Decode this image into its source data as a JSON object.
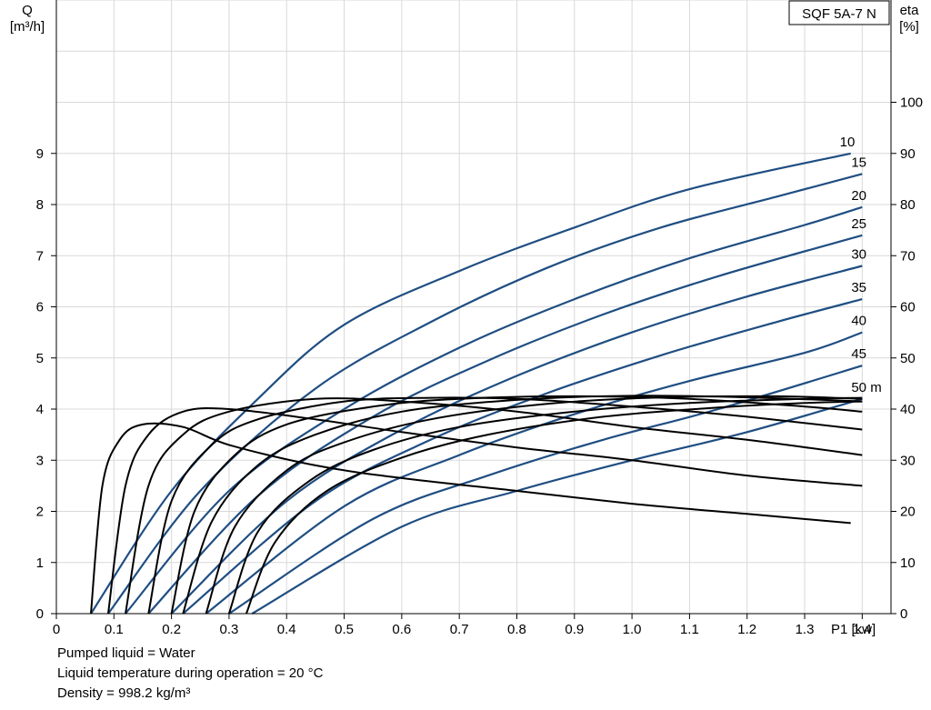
{
  "chart_data": {
    "type": "line",
    "product": "SQF 5A-7 N",
    "x_axis": {
      "label": "P1 [kw]",
      "range": [
        0,
        1.45
      ],
      "ticks": [
        0,
        0.1,
        0.2,
        0.3,
        0.4,
        0.5,
        0.6,
        0.7,
        0.8,
        0.9,
        1.0,
        1.1,
        1.2,
        1.3,
        1.4
      ],
      "tick_labels": [
        "0",
        "0.1",
        "0.2",
        "0.3",
        "0.4",
        "0.5",
        "0.6",
        "0.7",
        "0.8",
        "0.9",
        "1.0",
        "1.1",
        "1.2",
        "1.3",
        "1.4"
      ]
    },
    "y_left": {
      "label_line1": "Q",
      "label_line2": "[m³/h]",
      "range": [
        0,
        12
      ],
      "ticks": [
        0,
        1,
        2,
        3,
        4,
        5,
        6,
        7,
        8,
        9
      ]
    },
    "y_right": {
      "label_line1": "eta",
      "label_line2": "[%]",
      "range": [
        0,
        120
      ],
      "ticks": [
        0,
        10,
        20,
        30,
        40,
        50,
        60,
        70,
        80,
        90,
        100
      ]
    },
    "grid": true,
    "flow_series": [
      {
        "name": "10",
        "label": "10",
        "points": [
          [
            0.06,
            0
          ],
          [
            0.2,
            2.4
          ],
          [
            0.35,
            4.2
          ],
          [
            0.5,
            5.65
          ],
          [
            0.7,
            6.7
          ],
          [
            0.9,
            7.55
          ],
          [
            1.1,
            8.3
          ],
          [
            1.38,
            9.0
          ]
        ]
      },
      {
        "name": "15",
        "label": "15",
        "points": [
          [
            0.09,
            0
          ],
          [
            0.25,
            2.4
          ],
          [
            0.45,
            4.4
          ],
          [
            0.65,
            5.7
          ],
          [
            0.85,
            6.75
          ],
          [
            1.05,
            7.55
          ],
          [
            1.25,
            8.15
          ],
          [
            1.4,
            8.6
          ]
        ]
      },
      {
        "name": "20",
        "label": "20",
        "points": [
          [
            0.12,
            0
          ],
          [
            0.3,
            2.4
          ],
          [
            0.5,
            4.0
          ],
          [
            0.7,
            5.2
          ],
          [
            0.9,
            6.15
          ],
          [
            1.1,
            6.95
          ],
          [
            1.3,
            7.6
          ],
          [
            1.4,
            7.95
          ]
        ]
      },
      {
        "name": "25",
        "label": "25",
        "points": [
          [
            0.16,
            0
          ],
          [
            0.35,
            2.3
          ],
          [
            0.55,
            3.85
          ],
          [
            0.75,
            4.95
          ],
          [
            0.95,
            5.85
          ],
          [
            1.15,
            6.6
          ],
          [
            1.4,
            7.4
          ]
        ]
      },
      {
        "name": "30",
        "label": "30",
        "points": [
          [
            0.2,
            0
          ],
          [
            0.4,
            2.2
          ],
          [
            0.6,
            3.6
          ],
          [
            0.8,
            4.65
          ],
          [
            1.0,
            5.5
          ],
          [
            1.2,
            6.2
          ],
          [
            1.4,
            6.8
          ]
        ]
      },
      {
        "name": "35",
        "label": "35",
        "points": [
          [
            0.22,
            0
          ],
          [
            0.45,
            2.2
          ],
          [
            0.65,
            3.4
          ],
          [
            0.85,
            4.3
          ],
          [
            1.05,
            5.05
          ],
          [
            1.25,
            5.7
          ],
          [
            1.4,
            6.15
          ]
        ]
      },
      {
        "name": "40",
        "label": "40",
        "points": [
          [
            0.26,
            0
          ],
          [
            0.5,
            2.1
          ],
          [
            0.7,
            3.1
          ],
          [
            0.9,
            3.9
          ],
          [
            1.1,
            4.55
          ],
          [
            1.3,
            5.1
          ],
          [
            1.4,
            5.5
          ]
        ]
      },
      {
        "name": "45",
        "label": "45",
        "points": [
          [
            0.3,
            0
          ],
          [
            0.55,
            1.85
          ],
          [
            0.75,
            2.7
          ],
          [
            0.95,
            3.4
          ],
          [
            1.15,
            4.0
          ],
          [
            1.4,
            4.85
          ]
        ]
      },
      {
        "name": "50",
        "label": "50 m",
        "points": [
          [
            0.34,
            0
          ],
          [
            0.6,
            1.7
          ],
          [
            0.8,
            2.4
          ],
          [
            1.0,
            3.0
          ],
          [
            1.2,
            3.55
          ],
          [
            1.4,
            4.2
          ]
        ]
      }
    ],
    "efficiency_series": [
      {
        "name": "10",
        "points": [
          [
            0.06,
            0
          ],
          [
            0.08,
            25
          ],
          [
            0.11,
            34
          ],
          [
            0.15,
            37
          ],
          [
            0.22,
            36.5
          ],
          [
            0.3,
            33
          ],
          [
            0.45,
            29
          ],
          [
            0.6,
            26.5
          ],
          [
            0.8,
            24
          ],
          [
            1.0,
            21.5
          ],
          [
            1.2,
            19.5
          ],
          [
            1.38,
            17.7
          ]
        ]
      },
      {
        "name": "15",
        "points": [
          [
            0.09,
            0
          ],
          [
            0.12,
            25
          ],
          [
            0.16,
            35
          ],
          [
            0.22,
            39.5
          ],
          [
            0.3,
            40
          ],
          [
            0.45,
            38
          ],
          [
            0.6,
            35.5
          ],
          [
            0.8,
            32.5
          ],
          [
            1.0,
            30
          ],
          [
            1.2,
            27
          ],
          [
            1.4,
            25
          ]
        ]
      },
      {
        "name": "20",
        "points": [
          [
            0.12,
            0
          ],
          [
            0.16,
            25
          ],
          [
            0.22,
            35
          ],
          [
            0.3,
            39.5
          ],
          [
            0.45,
            42
          ],
          [
            0.6,
            41.5
          ],
          [
            0.8,
            39.5
          ],
          [
            1.0,
            36.5
          ],
          [
            1.2,
            34
          ],
          [
            1.4,
            31
          ]
        ]
      },
      {
        "name": "25",
        "points": [
          [
            0.16,
            0
          ],
          [
            0.2,
            22
          ],
          [
            0.27,
            33
          ],
          [
            0.35,
            38
          ],
          [
            0.5,
            41.5
          ],
          [
            0.65,
            42.2
          ],
          [
            0.8,
            42
          ],
          [
            1.0,
            40.5
          ],
          [
            1.2,
            38.5
          ],
          [
            1.4,
            36
          ]
        ]
      },
      {
        "name": "30",
        "points": [
          [
            0.2,
            0
          ],
          [
            0.24,
            20
          ],
          [
            0.31,
            31
          ],
          [
            0.4,
            37
          ],
          [
            0.55,
            40.5
          ],
          [
            0.7,
            42
          ],
          [
            0.9,
            42.5
          ],
          [
            1.1,
            42
          ],
          [
            1.3,
            40.5
          ],
          [
            1.4,
            39.5
          ]
        ]
      },
      {
        "name": "35",
        "points": [
          [
            0.22,
            0
          ],
          [
            0.27,
            18
          ],
          [
            0.35,
            29
          ],
          [
            0.45,
            35
          ],
          [
            0.6,
            39.5
          ],
          [
            0.8,
            41.8
          ],
          [
            1.0,
            42.6
          ],
          [
            1.2,
            42.3
          ],
          [
            1.4,
            41.5
          ]
        ]
      },
      {
        "name": "40",
        "points": [
          [
            0.26,
            0
          ],
          [
            0.31,
            17
          ],
          [
            0.4,
            28
          ],
          [
            0.5,
            33.5
          ],
          [
            0.65,
            38
          ],
          [
            0.85,
            41
          ],
          [
            1.05,
            42.3
          ],
          [
            1.25,
            42.5
          ],
          [
            1.4,
            42
          ]
        ]
      },
      {
        "name": "45",
        "points": [
          [
            0.3,
            0
          ],
          [
            0.35,
            16
          ],
          [
            0.44,
            26
          ],
          [
            0.55,
            32
          ],
          [
            0.7,
            36.5
          ],
          [
            0.9,
            39.5
          ],
          [
            1.1,
            41.2
          ],
          [
            1.3,
            42
          ],
          [
            1.4,
            42.2
          ]
        ]
      },
      {
        "name": "50",
        "points": [
          [
            0.33,
            0
          ],
          [
            0.38,
            14
          ],
          [
            0.47,
            24
          ],
          [
            0.6,
            30.5
          ],
          [
            0.75,
            35
          ],
          [
            0.95,
            38.5
          ],
          [
            1.15,
            40.3
          ],
          [
            1.3,
            41.2
          ],
          [
            1.4,
            41.5
          ]
        ]
      }
    ]
  },
  "notes": {
    "line1": "Pumped liquid = Water",
    "line2": "Liquid temperature during operation = 20 °C",
    "line3": "Density = 998.2 kg/m³"
  }
}
